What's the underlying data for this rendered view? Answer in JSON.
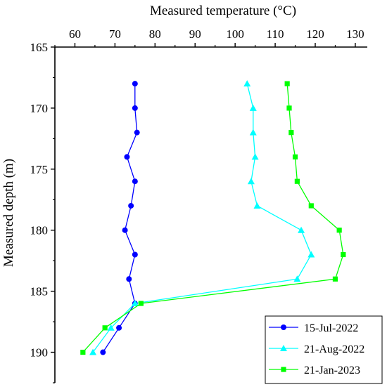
{
  "chart_data": {
    "type": "line",
    "xlabel": "Measured temperature (°C)",
    "ylabel": "Measured depth (m)",
    "x_axis_position": "top",
    "y_inverted": true,
    "xlim": [
      55,
      133
    ],
    "ylim": [
      165,
      192.5
    ],
    "x_ticks": [
      60,
      70,
      80,
      90,
      100,
      110,
      120,
      130
    ],
    "y_ticks": [
      165,
      170,
      175,
      180,
      185,
      190
    ],
    "grid": false,
    "legend_position": "bottom-right",
    "series": [
      {
        "name": "15-Jul-2022",
        "color": "#0000ff",
        "marker": "circle",
        "points": [
          {
            "temp": 75.0,
            "depth": 168
          },
          {
            "temp": 75.0,
            "depth": 170
          },
          {
            "temp": 75.5,
            "depth": 172
          },
          {
            "temp": 73.0,
            "depth": 174
          },
          {
            "temp": 75.0,
            "depth": 176
          },
          {
            "temp": 74.0,
            "depth": 178
          },
          {
            "temp": 72.5,
            "depth": 180
          },
          {
            "temp": 75.0,
            "depth": 182
          },
          {
            "temp": 73.5,
            "depth": 184
          },
          {
            "temp": 75.0,
            "depth": 186
          },
          {
            "temp": 71.0,
            "depth": 188
          },
          {
            "temp": 67.0,
            "depth": 190
          }
        ]
      },
      {
        "name": "21-Aug-2022",
        "color": "#00ffff",
        "marker": "triangle",
        "points": [
          {
            "temp": 103.0,
            "depth": 168
          },
          {
            "temp": 104.5,
            "depth": 170
          },
          {
            "temp": 104.5,
            "depth": 172
          },
          {
            "temp": 105.0,
            "depth": 174
          },
          {
            "temp": 104.0,
            "depth": 176
          },
          {
            "temp": 105.5,
            "depth": 178
          },
          {
            "temp": 116.5,
            "depth": 180
          },
          {
            "temp": 119.0,
            "depth": 182
          },
          {
            "temp": 115.5,
            "depth": 184
          },
          {
            "temp": 75.0,
            "depth": 186
          },
          {
            "temp": 69.0,
            "depth": 188
          },
          {
            "temp": 64.5,
            "depth": 190
          }
        ]
      },
      {
        "name": "21-Jan-2023",
        "color": "#00ff00",
        "marker": "square",
        "points": [
          {
            "temp": 113.0,
            "depth": 168
          },
          {
            "temp": 113.5,
            "depth": 170
          },
          {
            "temp": 114.0,
            "depth": 172
          },
          {
            "temp": 115.0,
            "depth": 174
          },
          {
            "temp": 115.5,
            "depth": 176
          },
          {
            "temp": 119.0,
            "depth": 178
          },
          {
            "temp": 126.0,
            "depth": 180
          },
          {
            "temp": 127.0,
            "depth": 182
          },
          {
            "temp": 125.0,
            "depth": 184
          },
          {
            "temp": 76.5,
            "depth": 186
          },
          {
            "temp": 67.5,
            "depth": 188
          },
          {
            "temp": 62.0,
            "depth": 190
          }
        ]
      }
    ]
  }
}
